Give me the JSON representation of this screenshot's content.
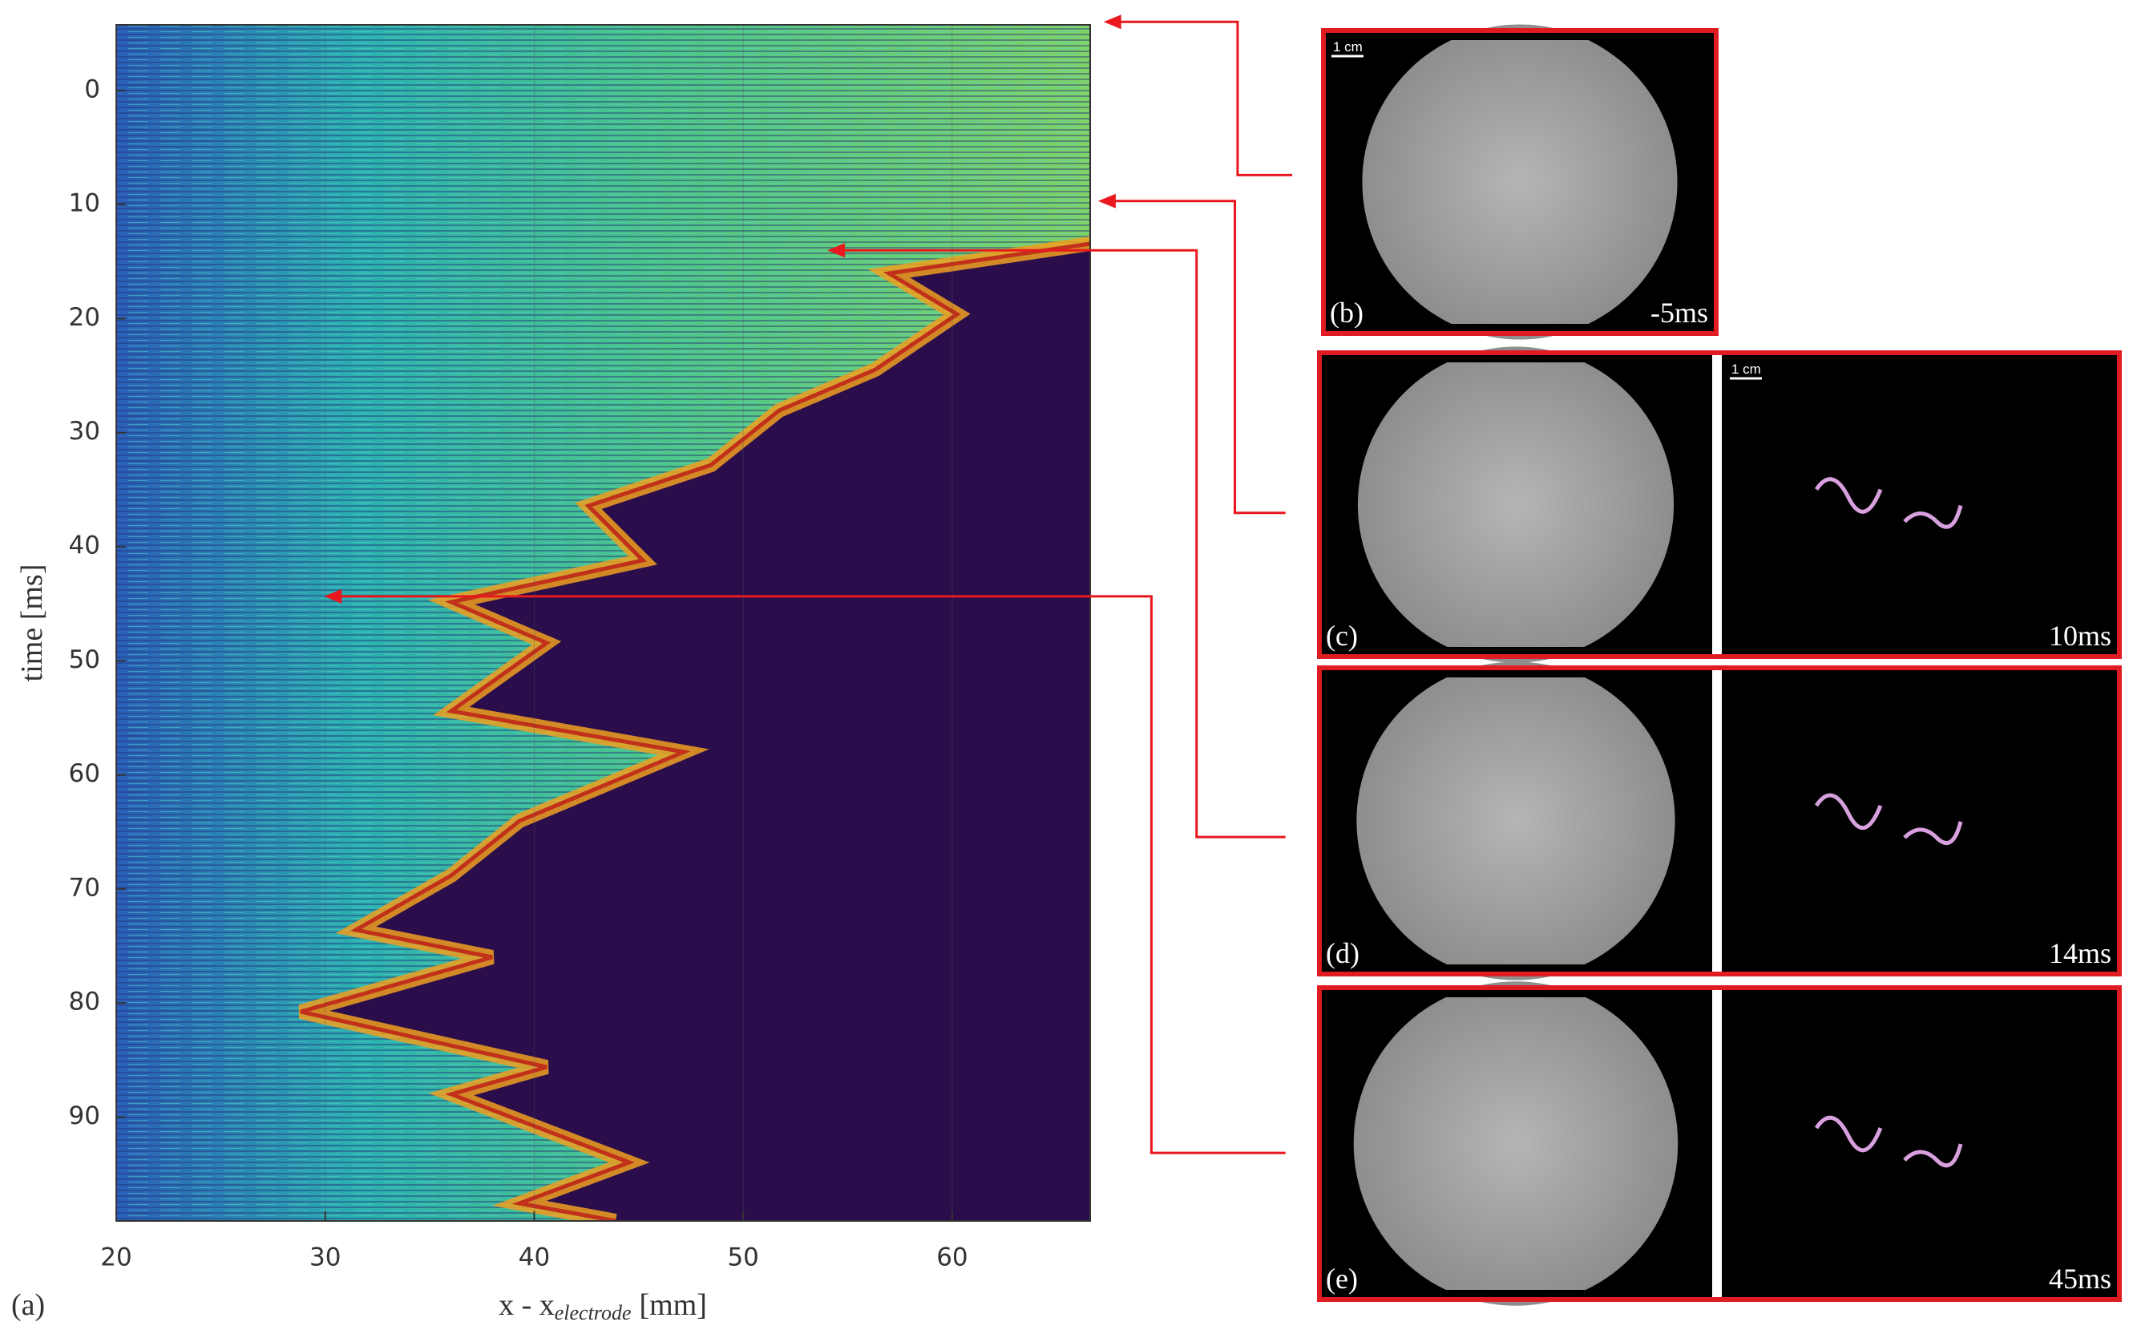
{
  "figure": {
    "panel_label": "(a)",
    "xlabel": "x - x",
    "xlabel_sub": "electrode",
    "xlabel_unit": "[mm]",
    "ylabel": "time [ms]",
    "xlim": [
      20,
      66.6
    ],
    "ylim": [
      -5.75,
      99.1
    ],
    "xticks": [
      20,
      30,
      40,
      50,
      60
    ],
    "yticks": [
      0,
      10,
      20,
      30,
      40,
      50,
      60,
      70,
      80,
      90
    ]
  },
  "panels": [
    {
      "label": "(b)",
      "time": "-5ms",
      "scale_bar": "1 cm"
    },
    {
      "label": "(c)",
      "time": "10ms",
      "scale_bar": "1 cm"
    },
    {
      "label": "(d)",
      "time": "14ms"
    },
    {
      "label": "(e)",
      "time": "45ms"
    }
  ]
}
